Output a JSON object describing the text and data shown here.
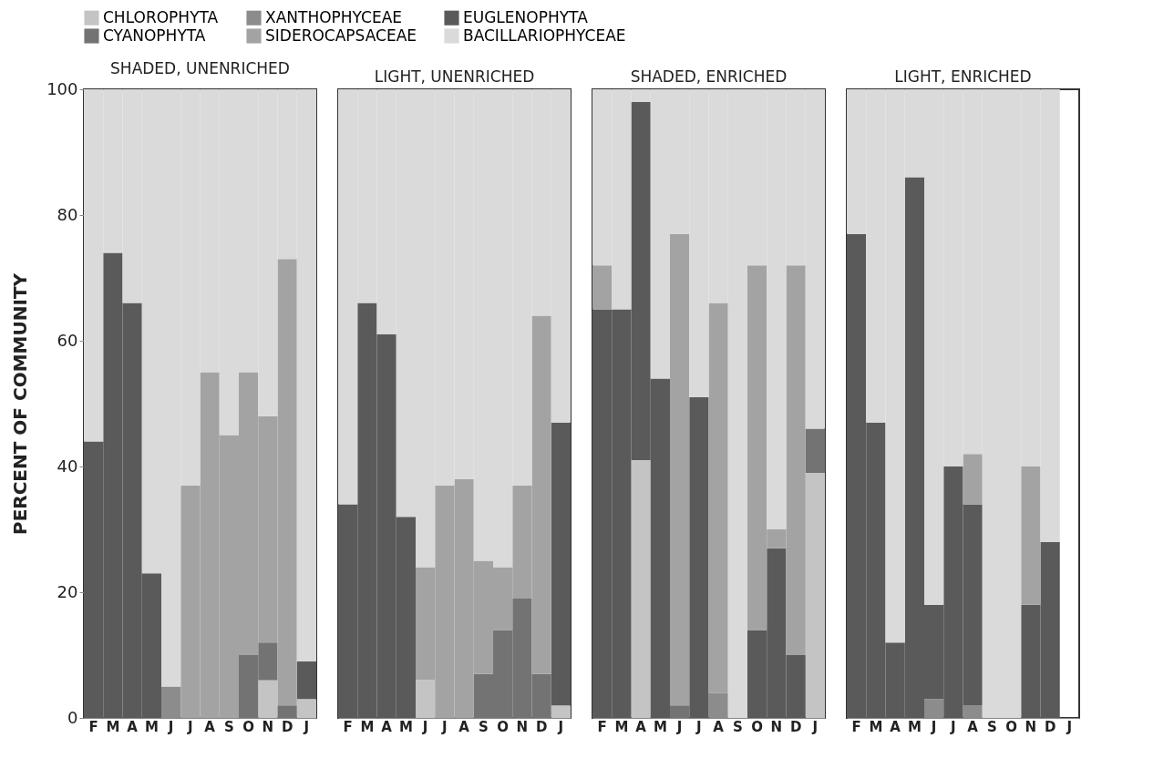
{
  "chart_data": [
    {
      "type": "bar",
      "stacked": true,
      "title": "SHADED, UNENRICHED",
      "ylabel": "PERCENT OF COMMUNITY",
      "legend": "top",
      "categories": [
        "F",
        "M",
        "A",
        "M",
        "J",
        "J",
        "A",
        "S",
        "O",
        "N",
        "D",
        "J"
      ],
      "ylim": [
        0,
        100
      ],
      "yticks": [
        0,
        20,
        40,
        60,
        80,
        100
      ],
      "grid": false,
      "series": [
        {
          "name": "CHLOROPHYTA",
          "color": "#c4c4c4",
          "values": [
            0,
            0,
            0,
            0,
            0,
            0,
            0,
            0,
            0,
            6,
            0,
            3
          ]
        },
        {
          "name": "XANTHOPHYCEAE",
          "color": "#8c8c8c",
          "values": [
            0,
            0,
            0,
            0,
            5,
            0,
            0,
            0,
            0,
            0,
            0,
            0
          ]
        },
        {
          "name": "EUGLENOPHYTA",
          "color": "#5a5a5a",
          "values": [
            44,
            74,
            66,
            23,
            0,
            0,
            0,
            0,
            0,
            0,
            0,
            6
          ]
        },
        {
          "name": "CYANOPHYTA",
          "color": "#737373",
          "values": [
            0,
            0,
            0,
            0,
            0,
            0,
            0,
            0,
            10,
            6,
            2,
            0
          ]
        },
        {
          "name": "SIDEROCAPSACEAE",
          "color": "#a3a3a3",
          "values": [
            0,
            0,
            0,
            0,
            0,
            37,
            55,
            45,
            45,
            36,
            71,
            0
          ]
        },
        {
          "name": "BACILLARIOPHYCEAE",
          "color": "#dadada",
          "values": [
            56,
            26,
            34,
            77,
            95,
            63,
            45,
            55,
            45,
            52,
            27,
            91
          ]
        }
      ]
    },
    {
      "type": "bar",
      "stacked": true,
      "title": "LIGHT, UNENRICHED",
      "categories": [
        "F",
        "M",
        "A",
        "M",
        "J",
        "J",
        "A",
        "S",
        "O",
        "N",
        "D",
        "J"
      ],
      "ylim": [
        0,
        100
      ],
      "tick_labels": "x",
      "grid": false,
      "series": [
        {
          "color": "#c4c4c4",
          "values": [
            0,
            0,
            0,
            0,
            6,
            0,
            0,
            0,
            0,
            0,
            0,
            2
          ]
        },
        {
          "color": "#8c8c8c",
          "values": [
            0,
            0,
            0,
            0,
            0,
            0,
            0,
            0,
            0,
            0,
            0,
            0
          ]
        },
        {
          "color": "#5a5a5a",
          "values": [
            34,
            66,
            61,
            32,
            0,
            0,
            0,
            0,
            0,
            0,
            0,
            45
          ]
        },
        {
          "color": "#737373",
          "values": [
            0,
            0,
            0,
            0,
            0,
            0,
            0,
            7,
            14,
            19,
            7,
            0
          ]
        },
        {
          "color": "#a3a3a3",
          "values": [
            0,
            0,
            0,
            0,
            18,
            37,
            38,
            18,
            10,
            18,
            57,
            0
          ]
        },
        {
          "color": "#dadada",
          "values": [
            66,
            34,
            39,
            68,
            76,
            63,
            62,
            75,
            76,
            63,
            36,
            53
          ]
        }
      ]
    },
    {
      "type": "bar",
      "stacked": true,
      "title": "SHADED, ENRICHED",
      "categories": [
        "F",
        "M",
        "A",
        "M",
        "J",
        "J",
        "A",
        "S",
        "O",
        "N",
        "D",
        "J"
      ],
      "ylim": [
        0,
        100
      ],
      "tick_labels": "x",
      "grid": false,
      "series": [
        {
          "color": "#c4c4c4",
          "values": [
            0,
            0,
            41,
            0,
            0,
            0,
            0,
            0,
            0,
            0,
            0,
            39
          ]
        },
        {
          "color": "#8c8c8c",
          "values": [
            0,
            0,
            0,
            0,
            0,
            0,
            4,
            0,
            0,
            0,
            0,
            0
          ]
        },
        {
          "color": "#5a5a5a",
          "values": [
            65,
            65,
            57,
            54,
            0,
            51,
            0,
            0,
            14,
            27,
            10,
            0
          ]
        },
        {
          "color": "#737373",
          "values": [
            0,
            0,
            0,
            0,
            2,
            0,
            0,
            0,
            0,
            0,
            0,
            7
          ]
        },
        {
          "color": "#a3a3a3",
          "values": [
            7,
            0,
            0,
            0,
            75,
            0,
            62,
            0,
            58,
            3,
            62,
            0
          ]
        },
        {
          "color": "#dadada",
          "values": [
            28,
            35,
            2,
            46,
            23,
            49,
            34,
            100,
            28,
            70,
            28,
            54
          ]
        }
      ]
    },
    {
      "type": "bar",
      "stacked": true,
      "title": "LIGHT, ENRICHED",
      "categories": [
        "F",
        "M",
        "A",
        "M",
        "J",
        "J",
        "A",
        "S",
        "O",
        "N",
        "D",
        "J"
      ],
      "ylim": [
        0,
        100
      ],
      "tick_labels": "x",
      "grid": false,
      "series": [
        {
          "color": "#c4c4c4",
          "values": [
            0,
            0,
            0,
            0,
            0,
            0,
            0,
            0,
            0,
            0,
            0,
            null
          ]
        },
        {
          "color": "#8c8c8c",
          "values": [
            0,
            0,
            0,
            0,
            3,
            0,
            2,
            0,
            0,
            0,
            0,
            null
          ]
        },
        {
          "color": "#5a5a5a",
          "values": [
            77,
            47,
            12,
            86,
            15,
            40,
            32,
            0,
            0,
            18,
            28,
            null
          ]
        },
        {
          "color": "#737373",
          "values": [
            0,
            0,
            0,
            0,
            0,
            0,
            0,
            0,
            0,
            0,
            0,
            null
          ]
        },
        {
          "color": "#a3a3a3",
          "values": [
            0,
            0,
            0,
            0,
            0,
            0,
            8,
            0,
            0,
            22,
            0,
            null
          ]
        },
        {
          "color": "#dadada",
          "values": [
            23,
            53,
            88,
            14,
            82,
            60,
            58,
            100,
            100,
            60,
            72,
            null
          ]
        }
      ]
    }
  ]
}
